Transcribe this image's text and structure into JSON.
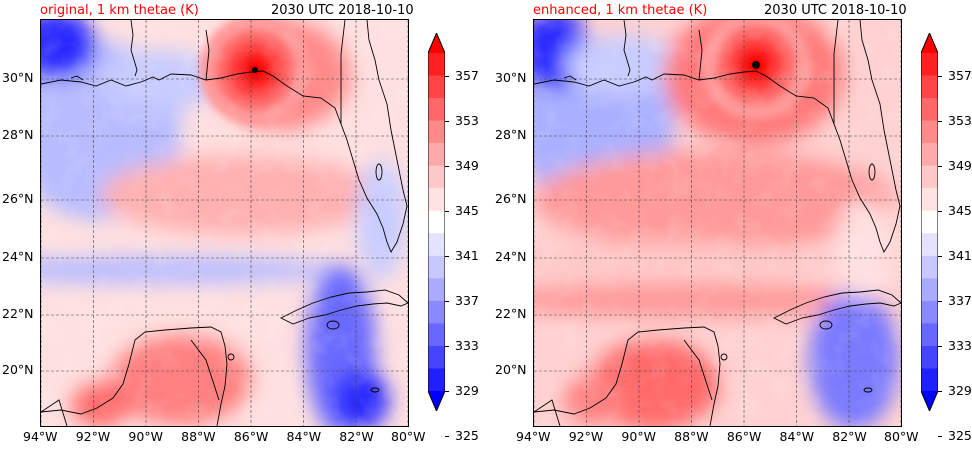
{
  "panels": [
    {
      "title": "original, 1 km thetae (K)",
      "timestamp": "2030 UTC 2018-10-10",
      "variant": "original"
    },
    {
      "title": "enhanced, 1 km thetae (K)",
      "timestamp": "2030 UTC 2018-10-10",
      "variant": "enhanced"
    }
  ],
  "axes": {
    "lon_ticks": [
      "94°W",
      "92°W",
      "90°W",
      "88°W",
      "86°W",
      "84°W",
      "82°W",
      "80°W"
    ],
    "lat_ticks": [
      "30°N",
      "28°N",
      "26°N",
      "24°N",
      "22°N",
      "20°N"
    ]
  },
  "colorbar": {
    "labels": [
      "357",
      "353",
      "349",
      "345",
      "341",
      "337",
      "333",
      "329",
      "325"
    ],
    "colors": [
      "#ff0000",
      "#ff2020",
      "#ff4545",
      "#ff6868",
      "#ff8a8a",
      "#ffaaaa",
      "#ffc8c8",
      "#ffe3e3",
      "#ffffff",
      "#e3e3ff",
      "#c8c8ff",
      "#aaaaff",
      "#8a8aff",
      "#6868ff",
      "#4545ff",
      "#2020ff",
      "#0000ff"
    ]
  }
}
